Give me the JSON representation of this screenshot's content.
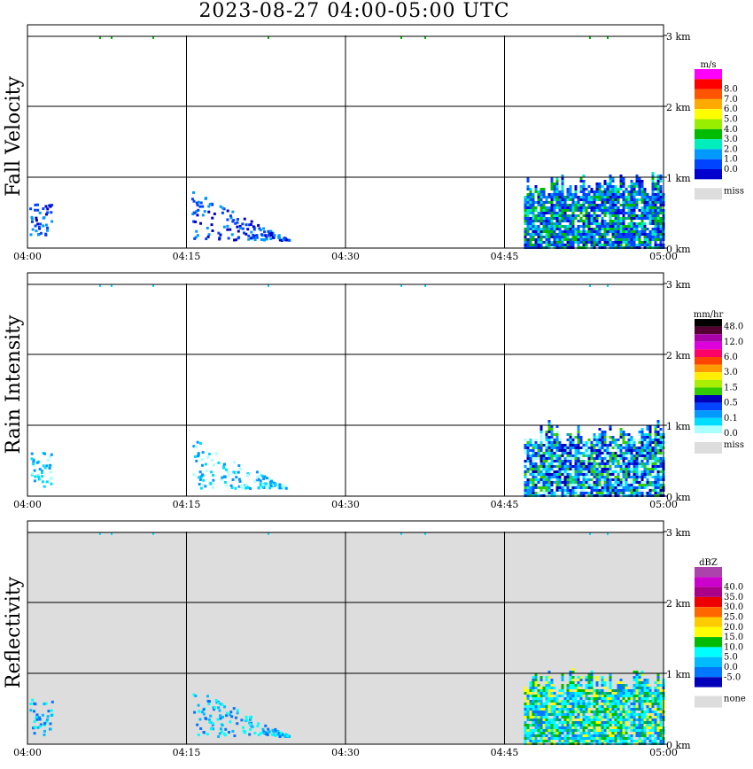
{
  "title": "2023-08-27  04:00-05:00 UTC",
  "chart_data": [
    {
      "type": "heatmap",
      "title": "Fall Velocity",
      "unit": "m/s",
      "x_ticks": [
        "04:00",
        "04:15",
        "04:30",
        "04:45",
        "05:00"
      ],
      "y_ticks": [
        "0 km",
        "1 km",
        "2 km",
        "3 km"
      ],
      "colorbar": [
        {
          "label": "",
          "color": "#ff00ff"
        },
        {
          "label": "8.0",
          "color": "#ff0000"
        },
        {
          "label": "7.0",
          "color": "#ff5500"
        },
        {
          "label": "6.0",
          "color": "#ffaa00"
        },
        {
          "label": "5.0",
          "color": "#ffff00"
        },
        {
          "label": "4.0",
          "color": "#99ee00"
        },
        {
          "label": "3.0",
          "color": "#00bb00"
        },
        {
          "label": "2.0",
          "color": "#00eebb"
        },
        {
          "label": "1.0",
          "color": "#0099ff"
        },
        {
          "label": "0.0",
          "color": "#0044ff"
        },
        {
          "label": "",
          "color": "#0000cc"
        }
      ],
      "missing_label": "miss",
      "missing_color": "#dddddd",
      "background": "#ffffff"
    },
    {
      "type": "heatmap",
      "title": "Rain Intensity",
      "unit": "mm/hr",
      "x_ticks": [
        "04:00",
        "04:15",
        "04:30",
        "04:45",
        "05:00"
      ],
      "y_ticks": [
        "0 km",
        "1 km",
        "2 km",
        "3 km"
      ],
      "colorbar": [
        {
          "label": "48.0",
          "color": "#000000"
        },
        {
          "label": "",
          "color": "#550033"
        },
        {
          "label": "12.0",
          "color": "#aa00aa"
        },
        {
          "label": "",
          "color": "#dd00dd"
        },
        {
          "label": "6.0",
          "color": "#ff0066"
        },
        {
          "label": "",
          "color": "#ff4400"
        },
        {
          "label": "3.0",
          "color": "#ff9900"
        },
        {
          "label": "",
          "color": "#ffee00"
        },
        {
          "label": "1.5",
          "color": "#aaee00"
        },
        {
          "label": "",
          "color": "#33cc00"
        },
        {
          "label": "0.5",
          "color": "#0000bb"
        },
        {
          "label": "",
          "color": "#0044ff"
        },
        {
          "label": "0.1",
          "color": "#0099ff"
        },
        {
          "label": "",
          "color": "#00ddff"
        },
        {
          "label": "0.0",
          "color": "#aaffff"
        }
      ],
      "missing_label": "miss",
      "missing_color": "#dddddd",
      "background": "#ffffff"
    },
    {
      "type": "heatmap",
      "title": "Reflectivity",
      "unit": "dBZ",
      "x_ticks": [
        "04:00",
        "04:15",
        "04:30",
        "04:45",
        "05:00"
      ],
      "y_ticks": [
        "0 km",
        "1 km",
        "2 km",
        "3 km"
      ],
      "colorbar": [
        {
          "label": "",
          "color": "#aa44aa"
        },
        {
          "label": "40.0",
          "color": "#cc00cc"
        },
        {
          "label": "35.0",
          "color": "#aa0088"
        },
        {
          "label": "30.0",
          "color": "#ee0000"
        },
        {
          "label": "25.0",
          "color": "#ff6600"
        },
        {
          "label": "20.0",
          "color": "#ffcc00"
        },
        {
          "label": "15.0",
          "color": "#ffff00"
        },
        {
          "label": "10.0",
          "color": "#00bb00"
        },
        {
          "label": "5.0",
          "color": "#00ffff"
        },
        {
          "label": "0.0",
          "color": "#00bbff"
        },
        {
          "label": "-5.0",
          "color": "#0077ff"
        },
        {
          "label": "",
          "color": "#0000bb"
        }
      ],
      "missing_label": "none",
      "missing_color": "#dddddd",
      "background": "#dddddd"
    }
  ]
}
